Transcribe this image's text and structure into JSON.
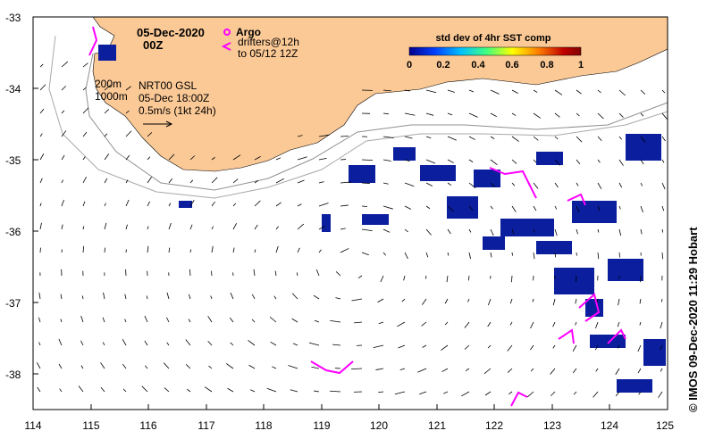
{
  "header": {
    "date": "05-Dec-2020",
    "time": "00Z"
  },
  "legend": {
    "argo_label": "Argo",
    "drifters_line1": "drifters@12h",
    "drifters_line2": "to 05/12 12Z",
    "depth_200": "200m",
    "depth_1000": "1000m",
    "product": "NRT00 GSL",
    "product_time": "05-Dec 18:00Z",
    "vector_scale": "0.5m/s (1kt 24h)"
  },
  "colorbar": {
    "title": "std dev of 4hr SST comp",
    "ticks": [
      "0",
      "0.2",
      "0.4",
      "0.6",
      "0.8",
      "1"
    ],
    "colors": [
      "#00008b",
      "#0040ff",
      "#00c0ff",
      "#40ff80",
      "#ffff00",
      "#ff8000",
      "#c00000",
      "#800000"
    ]
  },
  "axes": {
    "x_ticks": [
      "114",
      "115",
      "116",
      "117",
      "118",
      "119",
      "120",
      "121",
      "122",
      "123",
      "124",
      "125"
    ],
    "y_ticks": [
      "-33",
      "-34",
      "-35",
      "-36",
      "-37",
      "-38"
    ]
  },
  "credit": "© IMOS 09-Dec-2020 11:29 Hobart",
  "colors": {
    "land": "#fbc996",
    "argo": "#ff00ff",
    "sst_blue": "#0a1e9e",
    "contour": "#909090"
  }
}
